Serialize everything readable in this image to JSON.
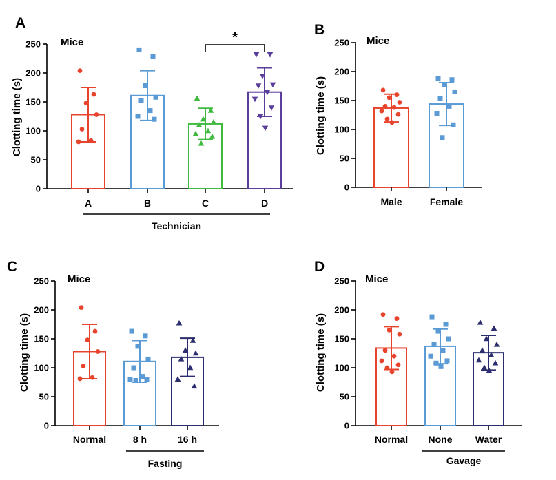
{
  "figure": "four-panel clotting time figure",
  "chart_data": [
    {
      "panel": "A",
      "type": "bar",
      "annotation": "Mice",
      "ylabel": "Clotting time (s)",
      "ylim": [
        0,
        250
      ],
      "yticks": [
        0,
        50,
        100,
        150,
        200,
        250
      ],
      "categories": [
        "A",
        "B",
        "C",
        "D"
      ],
      "group_label": "Technician",
      "error_bars": "mean ± SD",
      "series": [
        {
          "category": "A",
          "mean": 128,
          "sd": 47,
          "color": "#e8432d",
          "marker": "circle",
          "points": [
            204,
            163,
            148,
            128,
            103,
            83,
            81
          ]
        },
        {
          "category": "B",
          "mean": 161,
          "sd": 43,
          "color": "#5b9bd5",
          "marker": "square",
          "points": [
            240,
            228,
            178,
            158,
            152,
            135,
            125,
            120
          ]
        },
        {
          "category": "C",
          "mean": 112,
          "sd": 27,
          "color": "#3fba3f",
          "marker": "triangle",
          "points": [
            156,
            135,
            120,
            115,
            110,
            100,
            95,
            90,
            78
          ]
        },
        {
          "category": "D",
          "mean": 167,
          "sd": 42,
          "color": "#5a3e9c",
          "marker": "triangle-down",
          "points": [
            232,
            232,
            195,
            180,
            178,
            167,
            155,
            140,
            125,
            105
          ]
        }
      ],
      "significance": [
        {
          "from": "C",
          "to": "D",
          "label": "*"
        }
      ]
    },
    {
      "panel": "B",
      "type": "bar",
      "annotation": "Mice",
      "ylabel": "Clotting  time (s)",
      "ylim": [
        0,
        250
      ],
      "yticks": [
        0,
        50,
        100,
        150,
        200,
        250
      ],
      "categories": [
        "Male",
        "Female"
      ],
      "error_bars": "mean ± SD",
      "series": [
        {
          "category": "Male",
          "mean": 137,
          "sd": 24,
          "color": "#e8432d",
          "marker": "circle",
          "points": [
            168,
            160,
            155,
            147,
            140,
            138,
            132,
            126,
            118,
            112
          ]
        },
        {
          "category": "Female",
          "mean": 144,
          "sd": 37,
          "color": "#5b9bd5",
          "marker": "square",
          "points": [
            188,
            186,
            178,
            165,
            153,
            140,
            128,
            108,
            86
          ]
        }
      ]
    },
    {
      "panel": "C",
      "type": "bar",
      "annotation": "Mice",
      "ylabel": "Clotting  time (s)",
      "ylim": [
        0,
        250
      ],
      "yticks": [
        0,
        50,
        100,
        150,
        200,
        250
      ],
      "categories": [
        "Normal",
        "8 h",
        "16 h"
      ],
      "group_label": "Fasting",
      "group_spans": [
        "8 h",
        "16 h"
      ],
      "error_bars": "mean ± SD",
      "series": [
        {
          "category": "Normal",
          "mean": 128,
          "sd": 47,
          "color": "#e8432d",
          "marker": "circle",
          "points": [
            204,
            163,
            148,
            128,
            103,
            83,
            81
          ]
        },
        {
          "category": "8 h",
          "mean": 111,
          "sd": 36,
          "color": "#5b9bd5",
          "marker": "square",
          "points": [
            163,
            155,
            137,
            115,
            100,
            85,
            80,
            80,
            78
          ]
        },
        {
          "category": "16 h",
          "mean": 118,
          "sd": 33,
          "color": "#2b2d6e",
          "marker": "triangle",
          "points": [
            177,
            147,
            130,
            125,
            115,
            100,
            80,
            68
          ]
        }
      ]
    },
    {
      "panel": "D",
      "type": "bar",
      "annotation": "Mice",
      "ylabel": "Clotting  time (s)",
      "ylim": [
        0,
        250
      ],
      "yticks": [
        0,
        50,
        100,
        150,
        200,
        250
      ],
      "categories": [
        "Normal",
        "None",
        "Water"
      ],
      "group_label": "Gavage",
      "group_spans": [
        "None",
        "Water"
      ],
      "error_bars": "mean ± SD",
      "series": [
        {
          "category": "Normal",
          "mean": 134,
          "sd": 37,
          "color": "#e8432d",
          "marker": "circle",
          "points": [
            192,
            185,
            165,
            158,
            130,
            120,
            112,
            105,
            100,
            93
          ]
        },
        {
          "category": "None",
          "mean": 137,
          "sd": 30,
          "color": "#5b9bd5",
          "marker": "square",
          "points": [
            188,
            175,
            163,
            150,
            140,
            130,
            120,
            112,
            108,
            102
          ]
        },
        {
          "category": "Water",
          "mean": 126,
          "sd": 30,
          "color": "#2b2d6e",
          "marker": "triangle",
          "points": [
            178,
            168,
            150,
            140,
            130,
            122,
            113,
            108,
            100,
            95
          ]
        }
      ]
    }
  ]
}
